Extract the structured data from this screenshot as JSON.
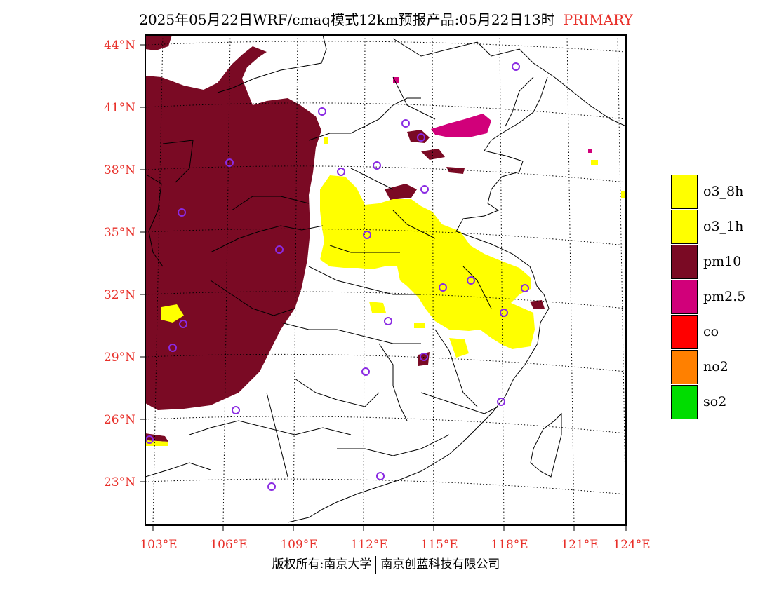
{
  "title": {
    "main": "2025年05月22日WRF/cmaq模式12km预报产品:05月22日13时",
    "primary": "PRIMARY"
  },
  "axes": {
    "lat_labels": [
      "44°N",
      "41°N",
      "38°N",
      "35°N",
      "32°N",
      "29°N",
      "26°N",
      "23°N"
    ],
    "lon_labels": [
      "103°E",
      "106°E",
      "109°E",
      "112°E",
      "115°E",
      "118°E",
      "121°E",
      "124°E"
    ]
  },
  "legend": {
    "items": [
      {
        "label": "o3_8h",
        "color": "#ffff00"
      },
      {
        "label": "o3_1h",
        "color": "#ffff00"
      },
      {
        "label": "pm10",
        "color": "#7a0a24"
      },
      {
        "label": "pm2.5",
        "color": "#d1007a"
      },
      {
        "label": "co",
        "color": "#ff0000"
      },
      {
        "label": "no2",
        "color": "#ff8000"
      },
      {
        "label": "so2",
        "color": "#00dd00"
      }
    ]
  },
  "colors": {
    "pm10": "#7a0a24",
    "pm25": "#d1007a",
    "o3": "#ffff00",
    "station_marker": "#8a2be2",
    "axis_label": "#e8302a"
  },
  "footer": {
    "left": "版权所有:南京大学",
    "right": "南京创蓝科技有限公司"
  }
}
